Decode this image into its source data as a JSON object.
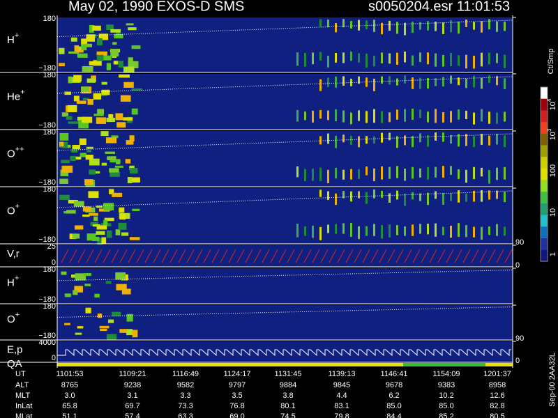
{
  "header": {
    "title": "May 02, 1990   EXOS-D SMS",
    "file": "s0050204.esr  11:01:53"
  },
  "panels": [
    {
      "ion": "H",
      "charge": "+",
      "ticks": [
        "180",
        "−180"
      ]
    },
    {
      "ion": "He",
      "charge": "+",
      "ticks": [
        "180",
        "−180"
      ]
    },
    {
      "ion": "O",
      "charge": "++",
      "ticks": [
        "180",
        "−180"
      ]
    },
    {
      "ion": "O",
      "charge": "+",
      "ticks": [
        "180",
        "−180"
      ],
      "right": "90"
    },
    {
      "ion": "V,r",
      "ticks": [
        "25",
        "0"
      ],
      "right": "0"
    },
    {
      "ion": "H",
      "charge": "+",
      "ticks": [
        "180",
        "−180"
      ]
    },
    {
      "ion": "O",
      "charge": "+",
      "ticks": [
        "180",
        "−180"
      ],
      "right": "90"
    },
    {
      "ion": "E,p",
      "extra": "QA",
      "ticks": [
        "4000",
        "0"
      ],
      "right": "0"
    }
  ],
  "colorbar": {
    "unit": "Ct/Smp",
    "labels": [
      {
        "base": "10",
        "exp": "4"
      },
      {
        "base": "10",
        "exp": "3"
      },
      {
        "base": "100"
      },
      {
        "base": "10"
      },
      {
        "base": "1"
      }
    ]
  },
  "side_note": "Sep-00  2AA32L",
  "ephemeris": [
    {
      "name": "UT",
      "values": [
        "1101:53",
        "1109:21",
        "1116:49",
        "1124:17",
        "1131:45",
        "1139:13",
        "1146:41",
        "1154:09",
        "1201:37"
      ]
    },
    {
      "name": "ALT",
      "values": [
        "8765",
        "9238",
        "9582",
        "9797",
        "9884",
        "9845",
        "9678",
        "9383",
        "8958"
      ]
    },
    {
      "name": "MLT",
      "values": [
        "3.0",
        "3.1",
        "3.3",
        "3.5",
        "3.8",
        "4.4",
        "6.2",
        "10.2",
        "12.6"
      ]
    },
    {
      "name": "InLat",
      "values": [
        "65.8",
        "69.7",
        "73.3",
        "76.8",
        "80.1",
        "83.1",
        "85.0",
        "85.0",
        "82.8"
      ]
    },
    {
      "name": "MLat",
      "values": [
        "51.1",
        "57.4",
        "63.3",
        "69.0",
        "74.5",
        "79.8",
        "84.4",
        "85.2",
        "80.5"
      ]
    }
  ]
}
